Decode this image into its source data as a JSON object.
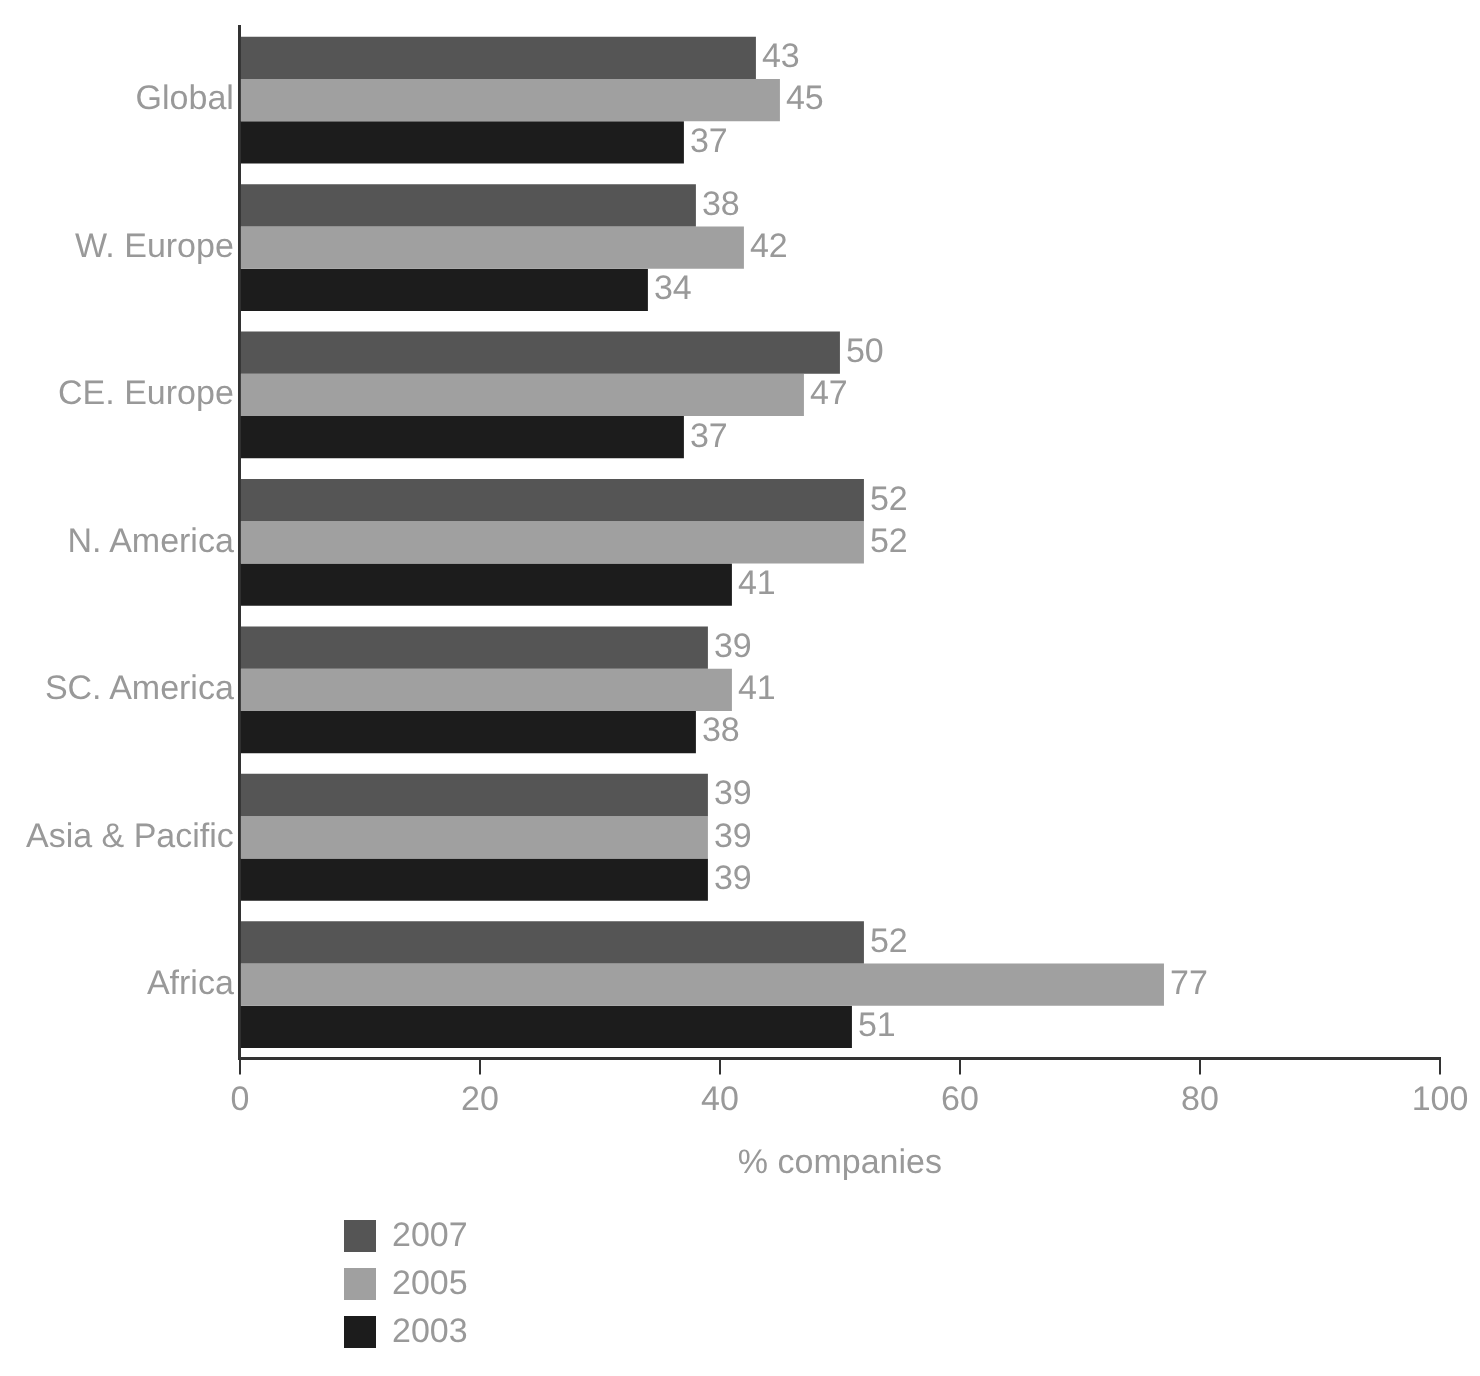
{
  "chart_data": {
    "type": "bar",
    "orientation": "horizontal",
    "xlabel": "% companies",
    "categories": [
      "Global",
      "W. Europe",
      "CE. Europe",
      "N. America",
      "SC. America",
      "Asia & Pacific",
      "Africa"
    ],
    "series": [
      {
        "name": "2007",
        "color": "#555555",
        "values": [
          43,
          38,
          50,
          52,
          39,
          39,
          52
        ]
      },
      {
        "name": "2005",
        "color": "#a0a0a0",
        "values": [
          45,
          42,
          47,
          52,
          41,
          39,
          77
        ]
      },
      {
        "name": "2003",
        "color": "#1c1c1c",
        "values": [
          37,
          34,
          37,
          41,
          38,
          39,
          51
        ]
      }
    ],
    "xlim": [
      0,
      100
    ],
    "xticks": [
      0,
      20,
      40,
      60,
      80,
      100
    ],
    "grid": false,
    "legend": "bottom left",
    "data_labels": true
  }
}
